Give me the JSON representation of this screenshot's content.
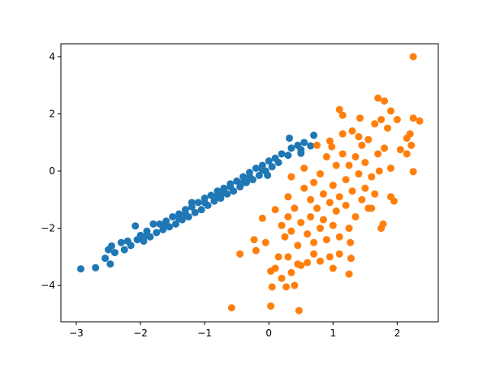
{
  "chart_data": {
    "type": "scatter",
    "title": "",
    "xlabel": "",
    "ylabel": "",
    "xlim": [
      -3.24,
      2.64
    ],
    "ylim": [
      -5.27,
      4.45
    ],
    "grid": false,
    "x_ticks": [
      -3,
      -2,
      -1,
      0,
      1,
      2
    ],
    "y_ticks": [
      -4,
      -2,
      0,
      2,
      4
    ],
    "x_tick_labels": [
      "−3",
      "−2",
      "−1",
      "0",
      "1",
      "2"
    ],
    "y_tick_labels": [
      "−4",
      "−2",
      "0",
      "2",
      "4"
    ],
    "series": [
      {
        "color": "#1f77b4",
        "points": [
          [
            -2.93,
            -3.42
          ],
          [
            -2.7,
            -3.38
          ],
          [
            -2.55,
            -3.05
          ],
          [
            -2.5,
            -2.75
          ],
          [
            -2.45,
            -2.62
          ],
          [
            -2.47,
            -3.25
          ],
          [
            -2.4,
            -2.85
          ],
          [
            -2.3,
            -2.5
          ],
          [
            -2.2,
            -2.45
          ],
          [
            -2.15,
            -2.6
          ],
          [
            -2.08,
            -1.92
          ],
          [
            -2.05,
            -2.4
          ],
          [
            -2.0,
            -2.25
          ],
          [
            -1.95,
            -2.45
          ],
          [
            -1.9,
            -2.1
          ],
          [
            -1.85,
            -2.3
          ],
          [
            -1.8,
            -1.85
          ],
          [
            -1.75,
            -2.15
          ],
          [
            -1.7,
            -1.85
          ],
          [
            -1.65,
            -2.05
          ],
          [
            -1.6,
            -1.75
          ],
          [
            -1.55,
            -1.95
          ],
          [
            -1.5,
            -1.6
          ],
          [
            -1.45,
            -1.85
          ],
          [
            -1.4,
            -1.5
          ],
          [
            -1.35,
            -1.7
          ],
          [
            -1.3,
            -1.35
          ],
          [
            -1.25,
            -1.6
          ],
          [
            -1.2,
            -1.25
          ],
          [
            -1.15,
            -1.45
          ],
          [
            -1.1,
            -1.1
          ],
          [
            -1.05,
            -1.35
          ],
          [
            -1.0,
            -0.95
          ],
          [
            -0.95,
            -1.2
          ],
          [
            -0.9,
            -0.85
          ],
          [
            -0.85,
            -1.05
          ],
          [
            -0.8,
            -0.7
          ],
          [
            -0.75,
            -0.95
          ],
          [
            -0.7,
            -0.6
          ],
          [
            -0.65,
            -0.8
          ],
          [
            -0.6,
            -0.45
          ],
          [
            -0.55,
            -0.7
          ],
          [
            -0.5,
            -0.35
          ],
          [
            -0.45,
            -0.55
          ],
          [
            -0.4,
            -0.2
          ],
          [
            -0.35,
            -0.4
          ],
          [
            -0.3,
            -0.05
          ],
          [
            -0.25,
            -0.3
          ],
          [
            -0.2,
            0.1
          ],
          [
            -0.15,
            -0.15
          ],
          [
            -0.1,
            0.2
          ],
          [
            -0.05,
            0.0
          ],
          [
            0.0,
            0.35
          ],
          [
            0.05,
            0.15
          ],
          [
            0.1,
            0.45
          ],
          [
            0.15,
            0.3
          ],
          [
            0.2,
            0.6
          ],
          [
            0.3,
            0.55
          ],
          [
            0.32,
            1.15
          ],
          [
            0.35,
            0.8
          ],
          [
            0.45,
            0.9
          ],
          [
            0.5,
            0.75
          ],
          [
            0.55,
            1.0
          ],
          [
            0.5,
            0.62
          ],
          [
            0.65,
            0.88
          ],
          [
            0.7,
            1.25
          ],
          [
            -1.3,
            -1.5
          ],
          [
            -1.0,
            -1.1
          ],
          [
            -0.7,
            -0.75
          ],
          [
            -1.6,
            -1.9
          ],
          [
            -1.9,
            -2.25
          ],
          [
            -2.25,
            -2.75
          ],
          [
            -0.4,
            -0.4
          ],
          [
            -0.1,
            0.05
          ],
          [
            -0.02,
            -0.15
          ],
          [
            -1.2,
            -1.1
          ],
          [
            -0.8,
            -0.85
          ],
          [
            -1.4,
            -1.65
          ],
          [
            -0.6,
            -0.55
          ],
          [
            -0.3,
            -0.2
          ]
        ]
      },
      {
        "color": "#ff7f0e",
        "points": [
          [
            2.25,
            4.0
          ],
          [
            -0.58,
            -4.78
          ],
          [
            0.03,
            -4.72
          ],
          [
            0.47,
            -4.88
          ],
          [
            2.25,
            -0.02
          ],
          [
            -0.45,
            -2.9
          ],
          [
            -0.1,
            -1.65
          ],
          [
            -0.23,
            -2.4
          ],
          [
            -0.2,
            -2.78
          ],
          [
            -0.05,
            -2.5
          ],
          [
            0.03,
            -3.5
          ],
          [
            0.05,
            -4.05
          ],
          [
            0.1,
            -3.4
          ],
          [
            0.15,
            -3.0
          ],
          [
            0.2,
            -3.75
          ],
          [
            0.27,
            -4.05
          ],
          [
            0.3,
            -3.0
          ],
          [
            0.35,
            -3.55
          ],
          [
            0.4,
            -4.0
          ],
          [
            0.45,
            -3.25
          ],
          [
            0.5,
            -3.3
          ],
          [
            0.6,
            -3.2
          ],
          [
            0.7,
            -2.9
          ],
          [
            0.8,
            -3.15
          ],
          [
            0.95,
            -3.0
          ],
          [
            1.0,
            -3.4
          ],
          [
            1.1,
            -2.9
          ],
          [
            1.25,
            -3.6
          ],
          [
            1.28,
            -3.05
          ],
          [
            1.27,
            -2.5
          ],
          [
            0.1,
            -1.35
          ],
          [
            0.2,
            -1.9
          ],
          [
            0.25,
            -2.3
          ],
          [
            0.3,
            -1.6
          ],
          [
            0.35,
            -2.1
          ],
          [
            0.3,
            -0.9
          ],
          [
            0.35,
            -0.2
          ],
          [
            0.4,
            -1.3
          ],
          [
            0.45,
            -2.6
          ],
          [
            0.5,
            -1.8
          ],
          [
            0.55,
            -0.6
          ],
          [
            0.55,
            0.1
          ],
          [
            0.6,
            -2.2
          ],
          [
            0.65,
            -1.0
          ],
          [
            0.65,
            -1.6
          ],
          [
            0.7,
            -2.5
          ],
          [
            0.7,
            -0.4
          ],
          [
            0.75,
            0.9
          ],
          [
            0.75,
            -1.3
          ],
          [
            0.8,
            -2.0
          ],
          [
            0.8,
            -0.1
          ],
          [
            0.85,
            -0.8
          ],
          [
            0.85,
            -1.7
          ],
          [
            0.9,
            0.5
          ],
          [
            0.9,
            -2.4
          ],
          [
            0.95,
            -1.1
          ],
          [
            0.95,
            1.05
          ],
          [
            1.0,
            -0.5
          ],
          [
            1.0,
            -1.9
          ],
          [
            1.05,
            0.2
          ],
          [
            1.05,
            -1.4
          ],
          [
            1.1,
            -0.9
          ],
          [
            1.1,
            -2.3
          ],
          [
            1.15,
            0.6
          ],
          [
            1.15,
            1.3
          ],
          [
            1.2,
            -0.3
          ],
          [
            1.2,
            -1.2
          ],
          [
            1.25,
            0.2
          ],
          [
            1.25,
            -2.0
          ],
          [
            1.3,
            1.4
          ],
          [
            1.3,
            -0.7
          ],
          [
            1.35,
            0.5
          ],
          [
            1.35,
            -1.6
          ],
          [
            1.4,
            -0.1
          ],
          [
            1.4,
            1.2
          ],
          [
            1.45,
            -1.0
          ],
          [
            1.45,
            0.9
          ],
          [
            1.5,
            0.3
          ],
          [
            1.5,
            -0.6
          ],
          [
            1.55,
            -1.3
          ],
          [
            1.55,
            1.1
          ],
          [
            1.6,
            -0.2
          ],
          [
            1.65,
            -0.8
          ],
          [
            1.65,
            1.65
          ],
          [
            1.7,
            0.6
          ],
          [
            1.7,
            2.55
          ],
          [
            1.72,
            0.0
          ],
          [
            1.75,
            -2.0
          ],
          [
            1.75,
            1.8
          ],
          [
            1.8,
            0.8
          ],
          [
            1.8,
            2.45
          ],
          [
            1.85,
            1.5
          ],
          [
            1.9,
            -0.9
          ],
          [
            1.9,
            0.1
          ],
          [
            2.0,
            1.8
          ],
          [
            2.05,
            0.75
          ],
          [
            2.15,
            0.6
          ],
          [
            2.2,
            1.3
          ],
          [
            2.22,
            0.9
          ],
          [
            2.25,
            1.85
          ],
          [
            2.35,
            1.75
          ],
          [
            1.15,
            1.95
          ],
          [
            1.1,
            2.15
          ],
          [
            1.42,
            1.85
          ],
          [
            1.9,
            2.1
          ],
          [
            1.6,
            -1.3
          ],
          [
            2.15,
            1.15
          ],
          [
            1.95,
            -1.05
          ],
          [
            1.78,
            -1.85
          ],
          [
            0.98,
            0.85
          ]
        ]
      }
    ]
  }
}
